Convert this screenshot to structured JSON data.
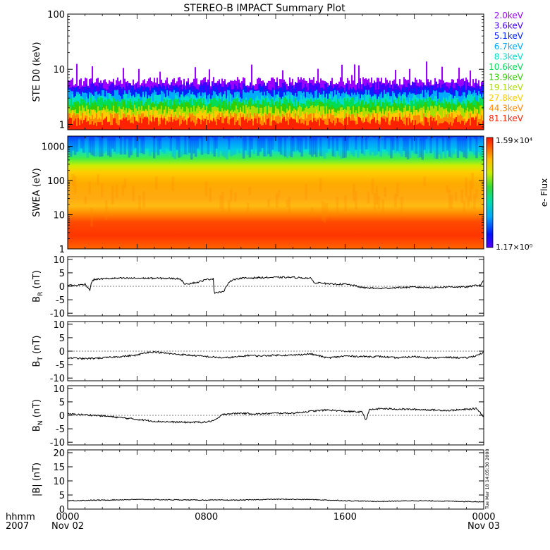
{
  "title": "STEREO-B IMPACT Summary Plot",
  "timestamp": "Tue Mar 18 14:05:30 2008",
  "x_axis": {
    "row1_label": "hhmm",
    "row2_label": "2007",
    "ticks": [
      {
        "t": 0,
        "time": "0000",
        "date": "Nov 02"
      },
      {
        "t": 8,
        "time": "0800",
        "date": ""
      },
      {
        "t": 16,
        "time": "1600",
        "date": ""
      },
      {
        "t": 24,
        "time": "0000",
        "date": "Nov 03"
      }
    ]
  },
  "colorbar": {
    "max_label": "1.59×10⁴",
    "min_label": "1.17×10⁰",
    "label": "e- Flux"
  },
  "colors": {
    "energy_channels": [
      "#9900ff",
      "#4400ff",
      "#0022ff",
      "#00aaff",
      "#00ddcc",
      "#00dd55",
      "#33cc00",
      "#aadd00",
      "#ffcc00",
      "#ff8800",
      "#ff2200"
    ]
  },
  "chart_data": [
    {
      "type": "line",
      "panel": "ste",
      "ylabel": "STE D0 (keV)",
      "yscale": "log",
      "ylim": [
        0.8,
        100
      ],
      "yticks": [
        "1",
        "10",
        "100"
      ],
      "xlim": [
        0,
        24
      ],
      "series": [
        {
          "name": "2.0keV",
          "baseline": 5.8
        },
        {
          "name": "3.6keV",
          "baseline": 4.8
        },
        {
          "name": "5.1keV",
          "baseline": 4.0
        },
        {
          "name": "6.7keV",
          "baseline": 3.4
        },
        {
          "name": "8.3keV",
          "baseline": 2.9
        },
        {
          "name": "10.6keV",
          "baseline": 2.5
        },
        {
          "name": "13.9keV",
          "baseline": 2.1
        },
        {
          "name": "19.1keV",
          "baseline": 1.8
        },
        {
          "name": "27.8keV",
          "baseline": 1.5
        },
        {
          "name": "44.3keV",
          "baseline": 1.3
        },
        {
          "name": "81.1keV",
          "baseline": 1.1
        }
      ]
    },
    {
      "type": "heatmap",
      "panel": "swea",
      "ylabel": "SWEA (eV)",
      "yscale": "log",
      "ylim": [
        1,
        2000
      ],
      "yticks": [
        "1",
        "10",
        "100",
        "1000"
      ],
      "xlim": [
        0,
        24
      ],
      "zlim": [
        1.17,
        15900
      ],
      "zlabel": "e- Flux"
    },
    {
      "type": "line",
      "panel": "br",
      "ylabel": "B_R (nT)",
      "ylim": [
        -11,
        11
      ],
      "yticks": [
        "10",
        "5",
        "0",
        "-5",
        "-10"
      ],
      "xlim": [
        0,
        24
      ],
      "x": [
        0,
        0.5,
        1.0,
        1.3,
        1.35,
        1.5,
        2.0,
        3.0,
        4.0,
        5.0,
        6.0,
        6.5,
        6.7,
        7.0,
        7.5,
        8.0,
        8.4,
        8.45,
        8.6,
        9.0,
        9.2,
        9.5,
        10,
        11,
        12,
        13,
        14,
        14.3,
        14.6,
        15,
        16,
        16.5,
        17,
        18,
        19,
        20,
        21,
        22,
        23,
        23.5,
        23.8,
        24
      ],
      "y": [
        0.5,
        0.3,
        0.8,
        -1.5,
        1.2,
        2.5,
        2.8,
        3.0,
        3.0,
        3.0,
        2.9,
        2.8,
        1.0,
        1.0,
        1.5,
        2.5,
        2.8,
        -2.5,
        -2.2,
        -2.0,
        0.5,
        2.5,
        3.0,
        3.2,
        3.3,
        3.3,
        3.0,
        1.0,
        1.5,
        0.8,
        0.8,
        0.3,
        -0.5,
        -0.8,
        -0.5,
        -0.3,
        -0.5,
        -0.2,
        -0.3,
        0.3,
        0.5,
        2.0
      ]
    },
    {
      "type": "line",
      "panel": "bt",
      "ylabel": "B_T (nT)",
      "ylim": [
        -11,
        11
      ],
      "yticks": [
        "10",
        "5",
        "0",
        "-5",
        "-10"
      ],
      "xlim": [
        0,
        24
      ],
      "x": [
        0,
        1,
        2,
        3,
        4,
        4.5,
        5,
        6,
        7,
        8,
        9,
        10,
        10.5,
        11,
        12,
        13,
        14,
        15,
        16,
        17,
        18,
        19,
        20,
        21,
        22,
        23,
        23.5,
        24
      ],
      "y": [
        -2.5,
        -2.8,
        -2.5,
        -2.0,
        -1.5,
        -0.5,
        -0.3,
        -1.0,
        -1.5,
        -2.0,
        -2.5,
        -2.0,
        -1.5,
        -1.8,
        -1.5,
        -1.5,
        -1.0,
        -2.5,
        -1.8,
        -2.0,
        -2.0,
        -2.5,
        -2.0,
        -2.5,
        -2.3,
        -2.5,
        -1.8,
        -0.5
      ]
    },
    {
      "type": "line",
      "panel": "bn",
      "ylabel": "B_N (nT)",
      "ylim": [
        -11,
        11
      ],
      "yticks": [
        "10",
        "5",
        "0",
        "-5",
        "-10"
      ],
      "xlim": [
        0,
        24
      ],
      "x": [
        0,
        1,
        2,
        3,
        4,
        5,
        6,
        7,
        8,
        8.5,
        9,
        10,
        11,
        12,
        13,
        14,
        15,
        16,
        17,
        17.2,
        17.4,
        18,
        19,
        20,
        21,
        22,
        23,
        23.6,
        24
      ],
      "y": [
        0.5,
        0.2,
        -0.2,
        -0.8,
        -1.5,
        -2.2,
        -2.5,
        -2.6,
        -2.5,
        -1.8,
        0.5,
        0.8,
        0.5,
        0.8,
        0.8,
        1.5,
        2.0,
        1.5,
        1.2,
        -1.8,
        2.0,
        2.5,
        2.3,
        2.2,
        2.0,
        1.8,
        2.2,
        2.5,
        -0.5
      ]
    },
    {
      "type": "line",
      "panel": "bmag",
      "ylabel": "|B| (nT)",
      "ylim": [
        0,
        21
      ],
      "yticks": [
        "20",
        "15",
        "10",
        "5",
        "0"
      ],
      "xlim": [
        0,
        24
      ],
      "x": [
        0,
        2,
        4,
        6,
        8,
        10,
        12,
        14,
        16,
        18,
        20,
        22,
        24
      ],
      "y": [
        3.0,
        3.2,
        3.4,
        3.3,
        3.2,
        3.2,
        3.5,
        3.4,
        3.0,
        2.7,
        3.0,
        2.8,
        2.6
      ]
    }
  ]
}
